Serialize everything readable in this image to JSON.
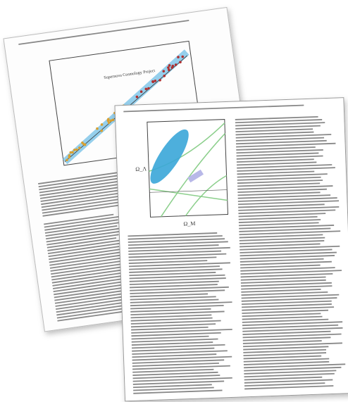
{
  "back_page": {
    "chart_label": "Supernova Cosmology Project"
  },
  "front_page": {
    "chart": {
      "x_label": "Ω_M",
      "y_label": "Ω_Λ"
    }
  }
}
